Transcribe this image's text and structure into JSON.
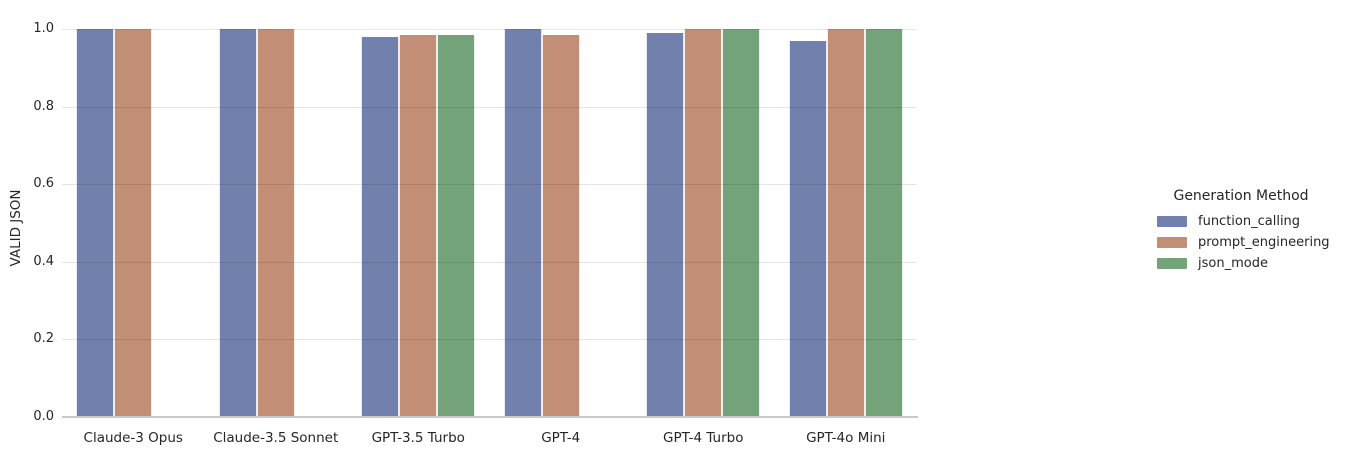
{
  "chart_data": {
    "type": "bar",
    "title": "",
    "xlabel": "",
    "ylabel": "VALID JSON",
    "categories": [
      "Claude-3 Opus",
      "Claude-3.5 Sonnet",
      "GPT-3.5 Turbo",
      "GPT-4",
      "GPT-4 Turbo",
      "GPT-4o Mini"
    ],
    "series": [
      {
        "name": "function_calling",
        "color": "#7280ad",
        "values": [
          1.0,
          1.0,
          0.98,
          1.0,
          0.99,
          0.97
        ]
      },
      {
        "name": "prompt_engineering",
        "color": "#c28f76",
        "values": [
          1.0,
          1.0,
          0.985,
          0.985,
          1.0,
          1.0
        ]
      },
      {
        "name": "json_mode",
        "color": "#74a37a",
        "values": [
          null,
          null,
          0.985,
          null,
          1.0,
          1.0
        ]
      }
    ],
    "ylim": [
      0.0,
      1.0
    ],
    "yticks": [
      0.0,
      0.2,
      0.4,
      0.6,
      0.8,
      1.0
    ],
    "ytick_labels": [
      "0.0",
      "0.2",
      "0.4",
      "0.6",
      "0.8",
      "1.0"
    ],
    "grid": true,
    "grid_over_bars": true,
    "legend": {
      "title": "Generation Method",
      "position": "right"
    }
  }
}
